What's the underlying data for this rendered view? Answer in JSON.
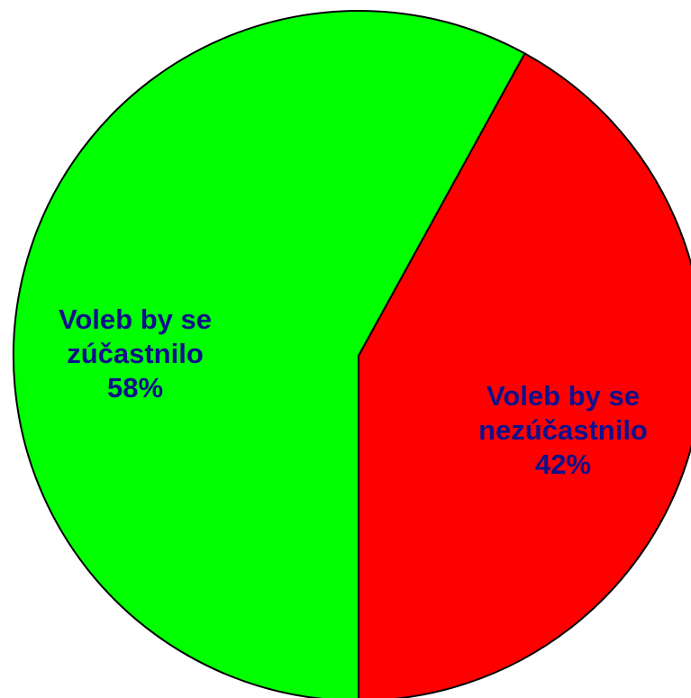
{
  "chart_data": {
    "type": "pie",
    "categories": [
      "Voleb by se zúčastnilo",
      "Voleb by se nezúčastnilo"
    ],
    "values": [
      58,
      42
    ],
    "value_labels": [
      "58%",
      "42%"
    ],
    "colors": [
      "#00ff00",
      "#ff0000"
    ]
  }
}
